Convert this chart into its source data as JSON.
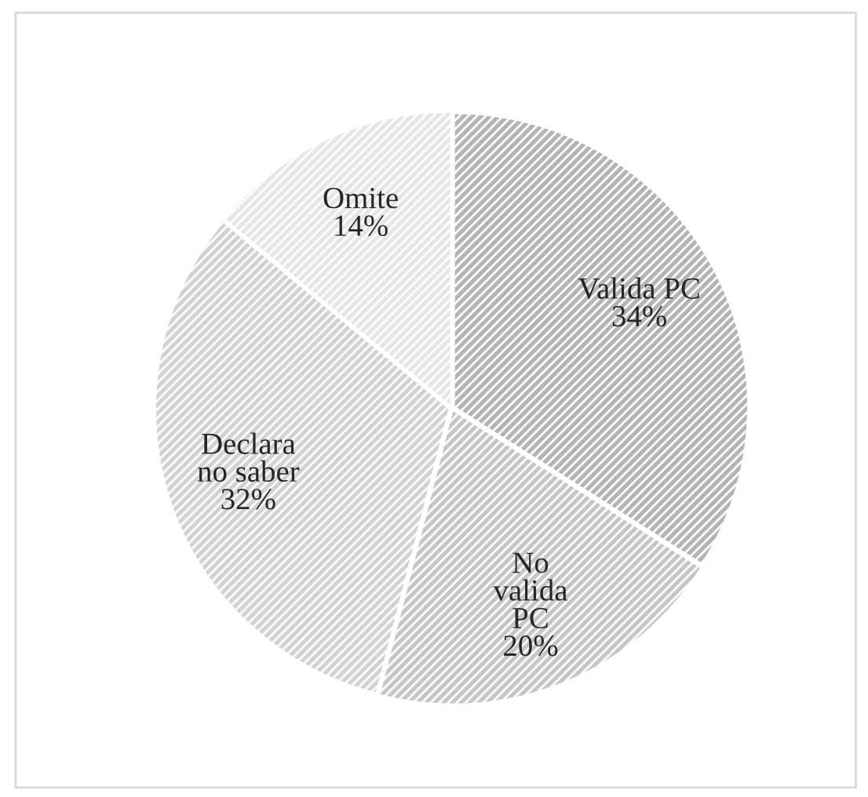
{
  "chart_data": {
    "type": "pie",
    "categories": [
      "Valida PC",
      "No\nvalida\nPC",
      "Declara\nno saber",
      "Omite"
    ],
    "values": [
      34,
      20,
      32,
      14
    ],
    "colors": [
      "#b4b4b4",
      "#c6c6c6",
      "#d2d2d2",
      "#e6e6e6"
    ],
    "value_labels": [
      "34%",
      "20%",
      "32%",
      "14%"
    ],
    "legend": false
  }
}
